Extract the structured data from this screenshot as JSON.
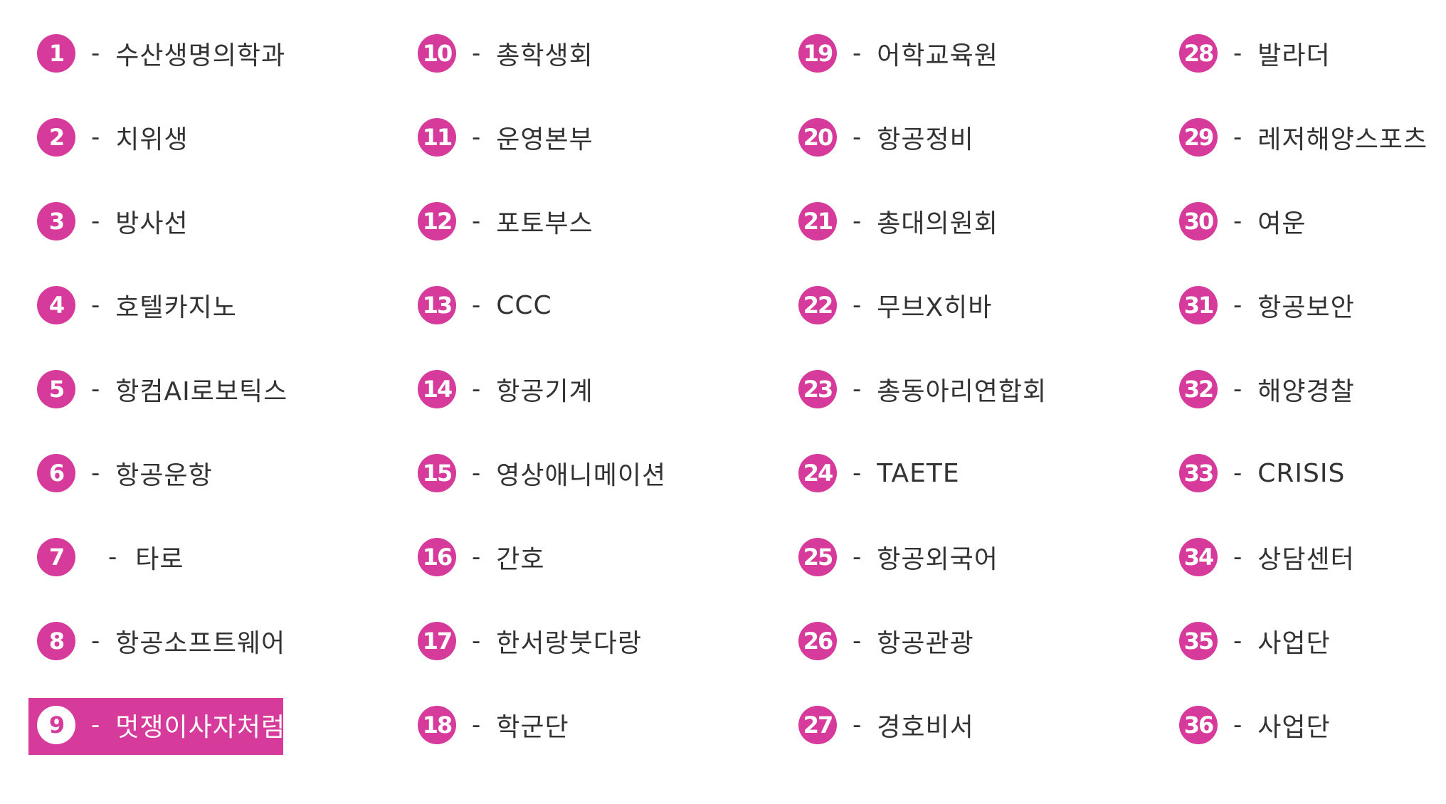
{
  "accent_color": "#d63a9a",
  "selected_number": "9",
  "booths": [
    {
      "num": "1",
      "name": "수산생명의학과"
    },
    {
      "num": "2",
      "name": "치위생"
    },
    {
      "num": "3",
      "name": "방사선"
    },
    {
      "num": "4",
      "name": "호텔카지노"
    },
    {
      "num": "5",
      "name": "항컴AI로보틱스"
    },
    {
      "num": "6",
      "name": "항공운항"
    },
    {
      "num": "7",
      "name": "타로"
    },
    {
      "num": "8",
      "name": "항공소프트웨어"
    },
    {
      "num": "9",
      "name": "멋쟁이사자처럼"
    },
    {
      "num": "10",
      "name": "총학생회"
    },
    {
      "num": "11",
      "name": "운영본부"
    },
    {
      "num": "12",
      "name": "포토부스"
    },
    {
      "num": "13",
      "name": "CCC"
    },
    {
      "num": "14",
      "name": "항공기계"
    },
    {
      "num": "15",
      "name": "영상애니메이션"
    },
    {
      "num": "16",
      "name": "간호"
    },
    {
      "num": "17",
      "name": "한서랑붓다랑"
    },
    {
      "num": "18",
      "name": "학군단"
    },
    {
      "num": "19",
      "name": "어학교육원"
    },
    {
      "num": "20",
      "name": "항공정비"
    },
    {
      "num": "21",
      "name": "총대의원회"
    },
    {
      "num": "22",
      "name": "무브X히바"
    },
    {
      "num": "23",
      "name": "총동아리연합회"
    },
    {
      "num": "24",
      "name": "TAETE"
    },
    {
      "num": "25",
      "name": "항공외국어"
    },
    {
      "num": "26",
      "name": "항공관광"
    },
    {
      "num": "27",
      "name": "경호비서"
    },
    {
      "num": "28",
      "name": "발라더"
    },
    {
      "num": "29",
      "name": "레저해양스포츠"
    },
    {
      "num": "30",
      "name": "여운"
    },
    {
      "num": "31",
      "name": "항공보안"
    },
    {
      "num": "32",
      "name": "해양경찰"
    },
    {
      "num": "33",
      "name": "CRISIS"
    },
    {
      "num": "34",
      "name": "상담센터"
    },
    {
      "num": "35",
      "name": "사업단"
    },
    {
      "num": "36",
      "name": "사업단"
    }
  ]
}
